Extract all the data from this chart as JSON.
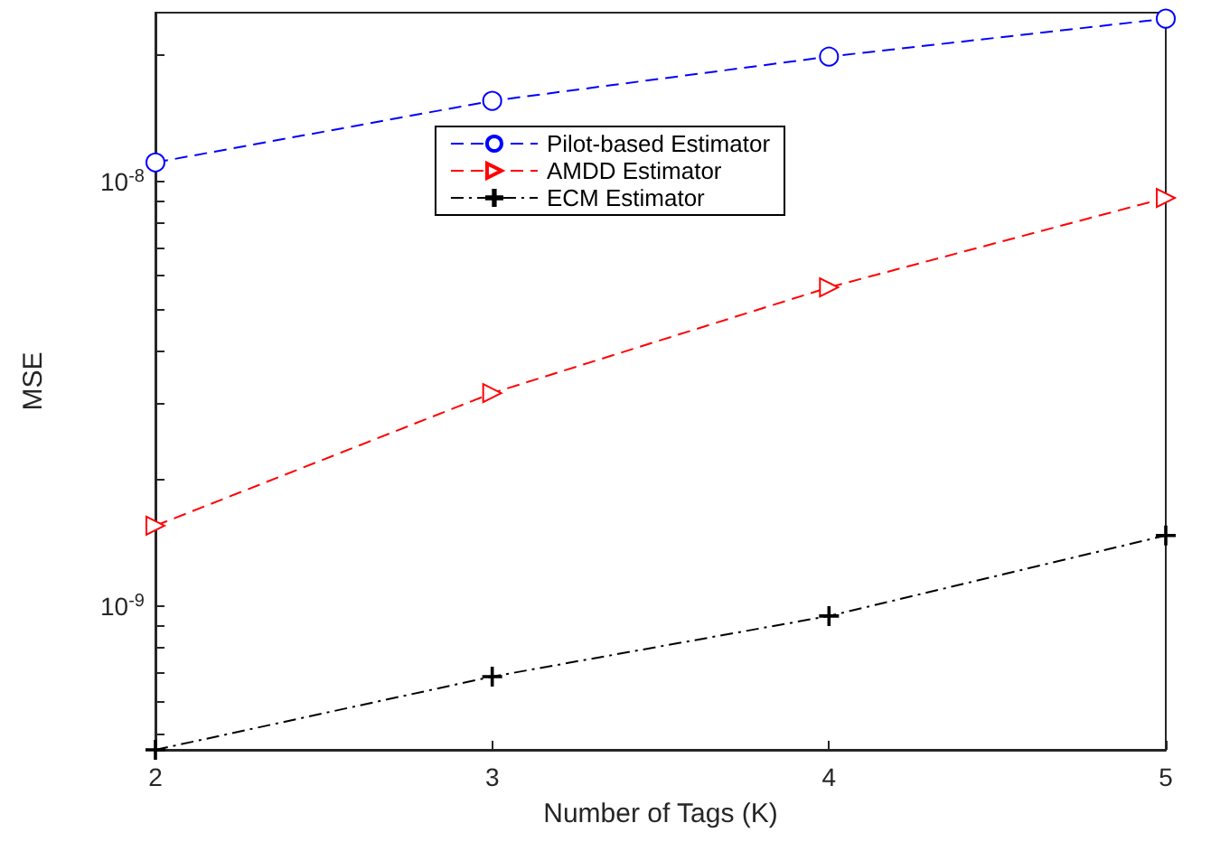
{
  "chart_data": {
    "type": "line",
    "xlabel": "Number of Tags (K)",
    "ylabel": "MSE",
    "log": "y",
    "grid": false,
    "legend": "top",
    "x": [
      2,
      3,
      4,
      5
    ],
    "xlim": [
      2,
      5
    ],
    "xticks": [
      2,
      3,
      4,
      5
    ],
    "ylim": [
      4.6e-10,
      2.5e-08
    ],
    "yticks": [
      {
        "value": 5e-10,
        "label": null
      },
      {
        "value": 6e-10,
        "label": null
      },
      {
        "value": 7e-10,
        "label": null
      },
      {
        "value": 8e-10,
        "label": null
      },
      {
        "value": 9e-10,
        "label": null
      },
      {
        "value": 1e-09,
        "label": "10$^{-9}$"
      },
      {
        "value": 2e-09,
        "label": null
      },
      {
        "value": 3e-09,
        "label": null
      },
      {
        "value": 4e-09,
        "label": null
      },
      {
        "value": 5e-09,
        "label": null
      },
      {
        "value": 6e-09,
        "label": null
      },
      {
        "value": 7e-09,
        "label": null
      },
      {
        "value": 8e-09,
        "label": null
      },
      {
        "value": 9e-09,
        "label": null
      },
      {
        "value": 1e-08,
        "label": "10$^{-8}$"
      },
      {
        "value": 2e-08,
        "label": null
      }
    ],
    "series": [
      {
        "name": "Pilot-based Estimator",
        "color": "#0000ff",
        "marker": "circle",
        "line_style": "dashed",
        "values": [
          1.11e-08,
          1.55e-08,
          1.97e-08,
          2.42e-08
        ]
      },
      {
        "name": "AMDD Estimator",
        "color": "#ff0000",
        "marker": "triangle",
        "line_style": "dashed",
        "values": [
          1.55e-09,
          3.18e-09,
          5.64e-09,
          9.16e-09
        ]
      },
      {
        "name": "ECM Estimator",
        "color": "#000000",
        "marker": "cross",
        "line_style": "dotted",
        "values": [
          4.6e-10,
          6.84e-10,
          9.5e-10,
          1.47e-09
        ]
      }
    ]
  }
}
